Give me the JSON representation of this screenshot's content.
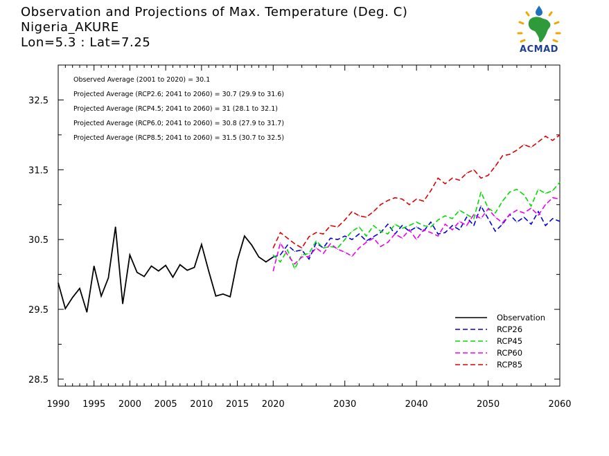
{
  "title": {
    "line1": "Observation and Projections of Max. Temperature (Deg. C)",
    "line2": "Nigeria_AKURE",
    "line3": "Lon=5.3 : Lat=7.25"
  },
  "logo": {
    "text": "ACMAD"
  },
  "stats": [
    "Observed Average (2001 to 2020) = 30.1",
    "Projected Average (RCP2.6; 2041 to 2060) = 30.7 (29.9 to 31.6)",
    "Projected Average (RCP4.5; 2041 to 2060) = 31 (28.1 to 32.1)",
    "Projected Average (RCP6.0; 2041 to 2060) = 30.8 (27.9 to 31.7)",
    "Projected Average (RCP8.5; 2041 to 2060) = 31.5 (30.7 to 32.5)"
  ],
  "colors": {
    "observation": "#000000",
    "rcp26": "#0000dd",
    "rcp45": "#00dd00",
    "rcp60": "#ee00ee",
    "rcp85": "#dd0000"
  },
  "chart_data": {
    "type": "line",
    "xlim": [
      1990,
      2060
    ],
    "ylim": [
      28.4,
      33.0
    ],
    "grid": false,
    "legend_position": "bottom-right",
    "x_ticks_major": [
      1990,
      1995,
      2000,
      2005,
      2010,
      2015,
      2020,
      2030,
      2040,
      2050,
      2060
    ],
    "y_ticks": [
      28.5,
      29.5,
      30.5,
      31.5,
      32.5
    ],
    "series": [
      {
        "name": "Observation",
        "key": "observation",
        "dashed": false,
        "x": [
          1990,
          1991,
          1992,
          1993,
          1994,
          1995,
          1996,
          1997,
          1998,
          1999,
          2000,
          2001,
          2002,
          2003,
          2004,
          2005,
          2006,
          2007,
          2008,
          2009,
          2010,
          2011,
          2012,
          2013,
          2014,
          2015,
          2016,
          2017,
          2018,
          2019,
          2020
        ],
        "values": [
          29.88,
          29.51,
          29.67,
          29.8,
          29.46,
          30.12,
          29.69,
          29.95,
          30.68,
          29.58,
          30.28,
          30.03,
          29.97,
          30.12,
          30.05,
          30.13,
          29.96,
          30.14,
          30.06,
          30.1,
          30.43,
          30.05,
          29.69,
          29.72,
          29.68,
          30.2,
          30.55,
          30.42,
          30.25,
          30.18,
          30.25
        ]
      },
      {
        "name": "RCP26",
        "key": "rcp26",
        "dashed": true,
        "x": [
          2020,
          2021,
          2022,
          2023,
          2024,
          2025,
          2026,
          2027,
          2028,
          2029,
          2030,
          2031,
          2032,
          2033,
          2034,
          2035,
          2036,
          2037,
          2038,
          2039,
          2040,
          2041,
          2042,
          2043,
          2044,
          2045,
          2046,
          2047,
          2048,
          2049,
          2050,
          2051,
          2052,
          2053,
          2054,
          2055,
          2056,
          2057,
          2058,
          2059,
          2060
        ],
        "values": [
          30.25,
          30.28,
          30.42,
          30.33,
          30.35,
          30.22,
          30.45,
          30.38,
          30.52,
          30.5,
          30.55,
          30.5,
          30.58,
          30.48,
          30.54,
          30.6,
          30.72,
          30.58,
          30.7,
          30.62,
          30.68,
          30.62,
          30.75,
          30.58,
          30.6,
          30.7,
          30.64,
          30.82,
          30.7,
          30.98,
          30.8,
          30.62,
          30.72,
          30.86,
          30.75,
          30.82,
          30.72,
          30.9,
          30.7,
          30.8,
          30.76
        ]
      },
      {
        "name": "RCP45",
        "key": "rcp45",
        "dashed": true,
        "x": [
          2020,
          2021,
          2022,
          2023,
          2024,
          2025,
          2026,
          2027,
          2028,
          2029,
          2030,
          2031,
          2032,
          2033,
          2034,
          2035,
          2036,
          2037,
          2038,
          2039,
          2040,
          2041,
          2042,
          2043,
          2044,
          2045,
          2046,
          2047,
          2048,
          2049,
          2050,
          2051,
          2052,
          2053,
          2054,
          2055,
          2056,
          2057,
          2058,
          2059,
          2060
        ],
        "values": [
          30.28,
          30.18,
          30.35,
          30.08,
          30.28,
          30.3,
          30.48,
          30.38,
          30.4,
          30.38,
          30.5,
          30.62,
          30.68,
          30.55,
          30.7,
          30.62,
          30.58,
          30.72,
          30.66,
          30.7,
          30.75,
          30.7,
          30.68,
          30.78,
          30.84,
          30.8,
          30.92,
          30.86,
          30.8,
          31.18,
          30.95,
          30.88,
          31.05,
          31.18,
          31.22,
          31.14,
          30.98,
          31.22,
          31.16,
          31.2,
          31.32
        ]
      },
      {
        "name": "RCP60",
        "key": "rcp60",
        "dashed": true,
        "x": [
          2020,
          2021,
          2022,
          2023,
          2024,
          2025,
          2026,
          2027,
          2028,
          2029,
          2030,
          2031,
          2032,
          2033,
          2034,
          2035,
          2036,
          2037,
          2038,
          2039,
          2040,
          2041,
          2042,
          2043,
          2044,
          2045,
          2046,
          2047,
          2048,
          2049,
          2050,
          2051,
          2052,
          2053,
          2054,
          2055,
          2056,
          2057,
          2058,
          2059,
          2060
        ],
        "values": [
          30.05,
          30.45,
          30.28,
          30.15,
          30.25,
          30.26,
          30.38,
          30.3,
          30.44,
          30.36,
          30.32,
          30.26,
          30.38,
          30.46,
          30.52,
          30.4,
          30.46,
          30.58,
          30.52,
          30.64,
          30.5,
          30.64,
          30.6,
          30.55,
          30.72,
          30.64,
          30.76,
          30.7,
          30.86,
          30.8,
          30.94,
          30.82,
          30.74,
          30.86,
          30.92,
          30.88,
          30.95,
          30.85,
          31.0,
          31.1,
          31.08
        ]
      },
      {
        "name": "RCP85",
        "key": "rcp85",
        "dashed": true,
        "x": [
          2020,
          2021,
          2022,
          2023,
          2024,
          2025,
          2026,
          2027,
          2028,
          2029,
          2030,
          2031,
          2032,
          2033,
          2034,
          2035,
          2036,
          2037,
          2038,
          2039,
          2040,
          2041,
          2042,
          2043,
          2044,
          2045,
          2046,
          2047,
          2048,
          2049,
          2050,
          2051,
          2052,
          2053,
          2054,
          2055,
          2056,
          2057,
          2058,
          2059,
          2060
        ],
        "values": [
          30.38,
          30.6,
          30.52,
          30.44,
          30.38,
          30.54,
          30.6,
          30.58,
          30.7,
          30.68,
          30.78,
          30.9,
          30.84,
          30.82,
          30.9,
          31.0,
          31.06,
          31.1,
          31.08,
          31.0,
          31.08,
          31.05,
          31.2,
          31.38,
          31.3,
          31.38,
          31.35,
          31.45,
          31.5,
          31.38,
          31.42,
          31.55,
          31.7,
          31.72,
          31.78,
          31.86,
          31.82,
          31.9,
          31.98,
          31.92,
          32.0
        ]
      }
    ]
  }
}
